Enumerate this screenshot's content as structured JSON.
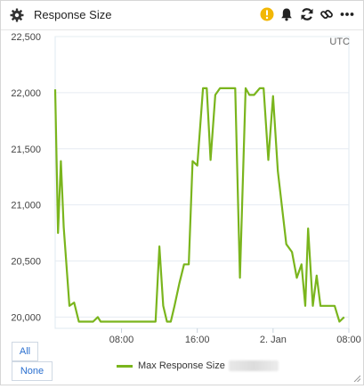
{
  "widget": {
    "title": "Response Size",
    "icons": [
      "gear-icon",
      "warning-icon",
      "bell-icon",
      "refresh-icon",
      "link-icon",
      "more-icon"
    ],
    "colors": {
      "warning": "#f2b705",
      "series": "#7ab51d",
      "filter_text": "#2a6fcf"
    }
  },
  "filters": {
    "all_label": "All",
    "none_label": "None"
  },
  "chart_data": {
    "type": "line",
    "timezone_label": "UTC",
    "y_tick_labels": [
      "20,000",
      "20,500",
      "21,000",
      "21,500",
      "22,000",
      "22,500"
    ],
    "x_tick_labels": [
      "08:00",
      "16:00",
      "2. Jan",
      "08:00"
    ],
    "ylim": [
      19900,
      22500
    ],
    "xlim": [
      0,
      31
    ],
    "x_ticks": [
      7,
      15,
      23,
      31
    ],
    "grid": true,
    "legend_position": "bottom",
    "series": [
      {
        "name": "Max Response Size",
        "color": "#7ab51d",
        "x": [
          0,
          0.3,
          0.6,
          0.9,
          1.5,
          2.0,
          2.5,
          3.2,
          4.0,
          4.5,
          4.8,
          6.0,
          7.0,
          8.0,
          9.0,
          10.0,
          10.6,
          11.0,
          11.4,
          11.8,
          12.2,
          12.6,
          13.1,
          13.6,
          14.1,
          14.5,
          15.0,
          15.6,
          16.0,
          16.4,
          16.9,
          17.4,
          18.0,
          19.0,
          19.5,
          20.1,
          20.5,
          21.0,
          21.6,
          22.0,
          22.5,
          23.0,
          23.5,
          24.4,
          25.0,
          25.5,
          26.0,
          26.4,
          26.7,
          27.2,
          27.6,
          28.0,
          28.5,
          29.0,
          29.5,
          30.0,
          30.5
        ],
        "y": [
          22030,
          20750,
          21390,
          20800,
          20100,
          20130,
          19960,
          19960,
          19960,
          20000,
          19960,
          19960,
          19960,
          19960,
          19960,
          19960,
          19960,
          20630,
          20100,
          19960,
          19960,
          20100,
          20300,
          20470,
          20470,
          21390,
          21350,
          22040,
          22040,
          21400,
          21980,
          22040,
          22040,
          22040,
          20350,
          22040,
          21980,
          21980,
          22040,
          22040,
          21400,
          21970,
          21300,
          20650,
          20580,
          20350,
          20470,
          20100,
          20790,
          20100,
          20370,
          20100,
          20100,
          20100,
          20100,
          19960,
          20000
        ]
      }
    ]
  }
}
